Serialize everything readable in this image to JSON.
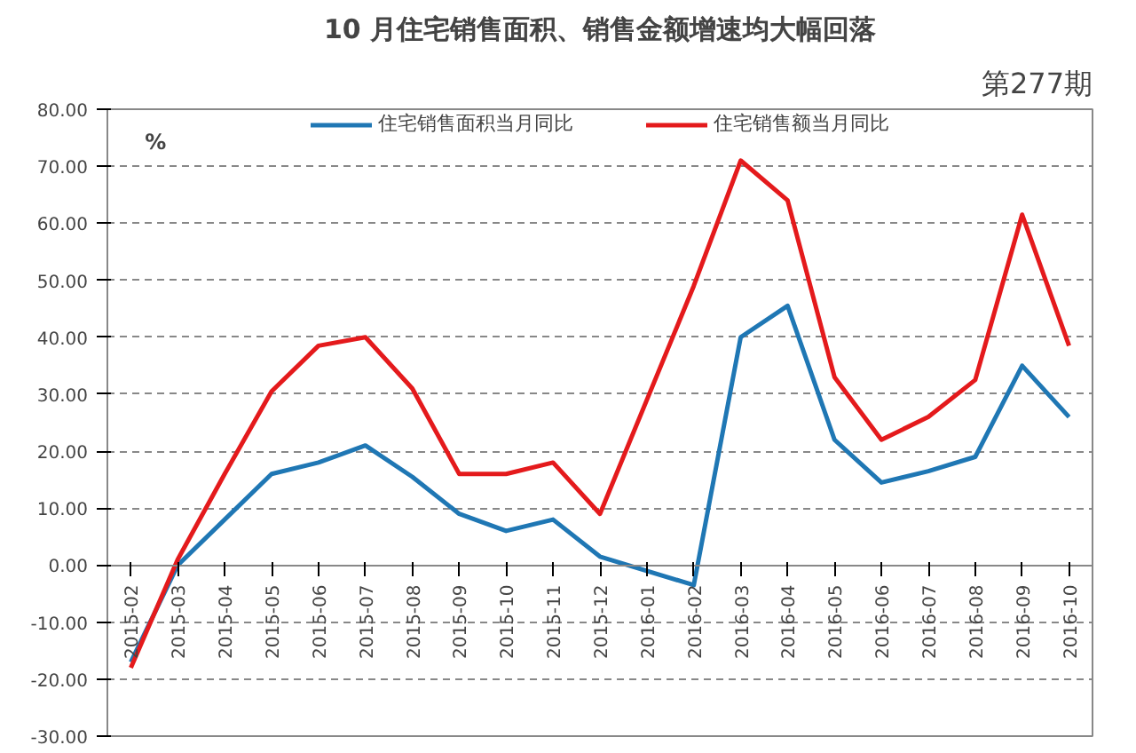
{
  "chart_data": {
    "type": "line",
    "title": "10 月住宅销售面积、销售金额增速均大幅回落",
    "annotations": [
      "第277期",
      "%"
    ],
    "categories": [
      "2015-02",
      "2015-03",
      "2015-04",
      "2015-05",
      "2015-06",
      "2015-07",
      "2015-08",
      "2015-09",
      "2015-10",
      "2015-11",
      "2015-12",
      "2016-01",
      "2016-02",
      "2016-03",
      "2016-04",
      "2016-05",
      "2016-06",
      "2016-07",
      "2016-08",
      "2016-09",
      "2016-10"
    ],
    "series": [
      {
        "name": "住宅销售面积当月同比",
        "color": "#1f77b4",
        "values": [
          -17,
          0,
          8,
          16,
          18,
          21,
          15.5,
          9,
          6,
          8,
          1.5,
          null,
          -3.5,
          40,
          45.5,
          22,
          14.5,
          16.5,
          19,
          35,
          26
        ]
      },
      {
        "name": "住宅销售额当月同比",
        "color": "#e41a1c",
        "values": [
          -18,
          1,
          16,
          30.5,
          38.5,
          40,
          31,
          16,
          16,
          18,
          9,
          null,
          49,
          71,
          64,
          33,
          22,
          26,
          32.5,
          61.5,
          38.5
        ]
      }
    ],
    "ylim": [
      -30,
      80
    ],
    "yticks": [
      {
        "value": -30,
        "label": "-30.00"
      },
      {
        "value": -20,
        "label": "-20.00"
      },
      {
        "value": -10,
        "label": "-10.00"
      },
      {
        "value": 0,
        "label": "0.00"
      },
      {
        "value": 10,
        "label": "10.00"
      },
      {
        "value": 20,
        "label": "20.00"
      },
      {
        "value": 30,
        "label": "30.00"
      },
      {
        "value": 40,
        "label": "40.00"
      },
      {
        "value": 50,
        "label": "50.00"
      },
      {
        "value": 60,
        "label": "60.00"
      },
      {
        "value": 70,
        "label": "70.00"
      },
      {
        "value": 80,
        "label": "80.00"
      }
    ],
    "grid": "y",
    "legend": "top",
    "marker": "none",
    "line_style": "solid"
  }
}
